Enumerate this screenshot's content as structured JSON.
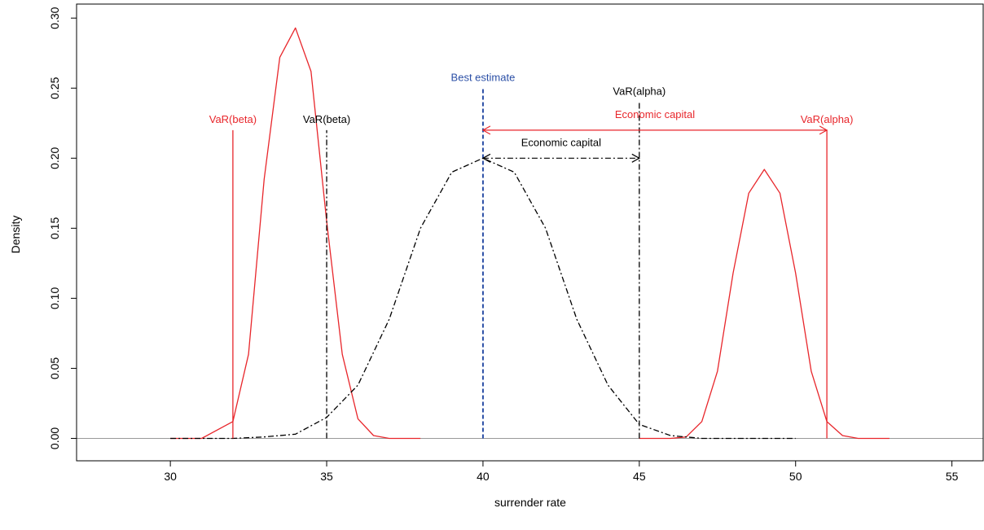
{
  "chart_data": {
    "type": "line",
    "title": "",
    "xlabel": "surrender rate",
    "ylabel": "Density",
    "xlim": [
      27,
      56
    ],
    "ylim": [
      -0.016,
      0.31
    ],
    "grid": false,
    "x_ticks": [
      30,
      35,
      40,
      45,
      50,
      55
    ],
    "x_tick_labels": [
      "30",
      "35",
      "40",
      "45",
      "50",
      "55"
    ],
    "y_ticks": [
      0.0,
      0.05,
      0.1,
      0.15,
      0.2,
      0.25,
      0.3
    ],
    "y_tick_labels": [
      "0.00",
      "0.05",
      "0.10",
      "0.15",
      "0.20",
      "0.25",
      "0.30"
    ],
    "colors": {
      "red": "#e8262b",
      "black": "#000000",
      "blue": "#2b4fa6",
      "baseline": "#999999"
    },
    "series": [
      {
        "style": "solid",
        "color": "#e8262b",
        "x": [
          30.0,
          31.0,
          32.0,
          32.5,
          33.0,
          33.5,
          34.0,
          34.5,
          35.0,
          35.5,
          36.0,
          36.5,
          37.0,
          38.0
        ],
        "y": [
          0.0,
          0.0,
          0.012,
          0.06,
          0.185,
          0.272,
          0.293,
          0.262,
          0.155,
          0.06,
          0.014,
          0.002,
          0.0,
          0.0
        ]
      },
      {
        "style": "solid",
        "color": "#e8262b",
        "x": [
          45.0,
          46.0,
          46.5,
          47.0,
          47.5,
          48.0,
          48.5,
          49.0,
          49.5,
          50.0,
          50.5,
          51.0,
          51.5,
          52.0,
          53.0
        ],
        "y": [
          0.0,
          0.0,
          0.001,
          0.012,
          0.048,
          0.118,
          0.175,
          0.192,
          0.175,
          0.118,
          0.048,
          0.012,
          0.002,
          0.0,
          0.0
        ]
      },
      {
        "style": "dashdot",
        "color": "#000000",
        "x": [
          30.0,
          32.0,
          33.0,
          34.0,
          35.0,
          36.0,
          37.0,
          38.0,
          39.0,
          40.0,
          41.0,
          42.0,
          43.0,
          44.0,
          45.0,
          46.0,
          47.0,
          48.0,
          50.0
        ],
        "y": [
          0.0,
          0.0,
          0.001,
          0.003,
          0.015,
          0.038,
          0.085,
          0.15,
          0.19,
          0.2,
          0.19,
          0.15,
          0.085,
          0.038,
          0.01,
          0.002,
          0.0,
          0.0,
          0.0
        ]
      }
    ],
    "vlines": [
      {
        "x": 32,
        "y": 0.22,
        "color": "#e8262b",
        "style": "solid",
        "label": "VaR(beta)"
      },
      {
        "x": 35,
        "y": 0.22,
        "color": "#000000",
        "style": "dashdot",
        "label": "VaR(beta)"
      },
      {
        "x": 40,
        "y": 0.25,
        "color": "#2b4fa6",
        "style": "dashed",
        "label": "Best estimate"
      },
      {
        "x": 45,
        "y": 0.24,
        "color": "#000000",
        "style": "dashdot",
        "label": "VaR(alpha)"
      },
      {
        "x": 51,
        "y": 0.22,
        "color": "#e8262b",
        "style": "solid",
        "label": "VaR(alpha)"
      }
    ],
    "arrows": [
      {
        "x1": 40,
        "x2": 51,
        "y": 0.22,
        "color": "#e8262b",
        "style": "solid",
        "label": "Economic capital"
      },
      {
        "x1": 40,
        "x2": 45,
        "y": 0.2,
        "color": "#000000",
        "style": "dashdot",
        "label": "Economic capital"
      }
    ]
  }
}
